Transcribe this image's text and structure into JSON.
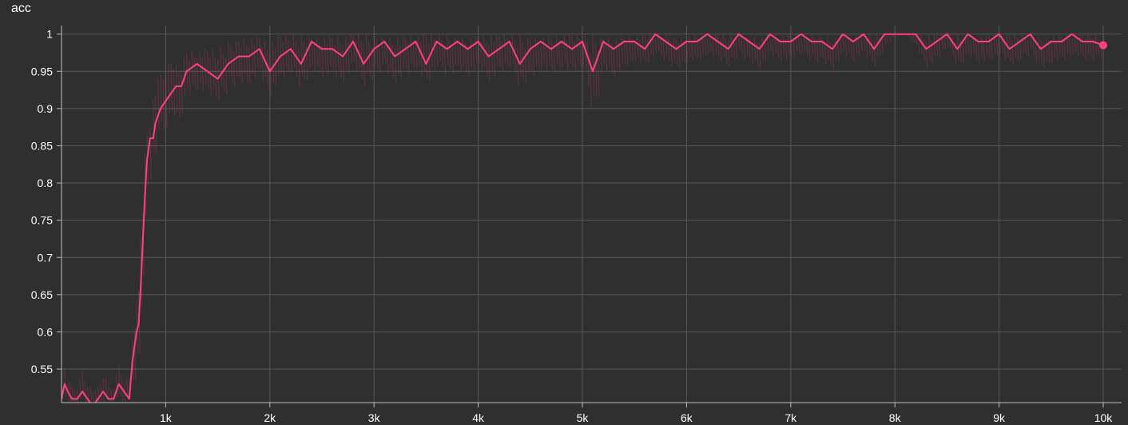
{
  "chart_data": {
    "type": "line",
    "title": "acc",
    "xlabel": "",
    "ylabel": "",
    "xlim": [
      0,
      10000
    ],
    "ylim": [
      0.505,
      1.005
    ],
    "grid": true,
    "x_ticks": [
      {
        "value": 1000,
        "label": "1k"
      },
      {
        "value": 2000,
        "label": "2k"
      },
      {
        "value": 3000,
        "label": "3k"
      },
      {
        "value": 4000,
        "label": "4k"
      },
      {
        "value": 5000,
        "label": "5k"
      },
      {
        "value": 6000,
        "label": "6k"
      },
      {
        "value": 7000,
        "label": "7k"
      },
      {
        "value": 8000,
        "label": "8k"
      },
      {
        "value": 9000,
        "label": "9k"
      },
      {
        "value": 10000,
        "label": "10k"
      }
    ],
    "y_ticks": [
      {
        "value": 0.55,
        "label": "0.55"
      },
      {
        "value": 0.6,
        "label": "0.6"
      },
      {
        "value": 0.65,
        "label": "0.65"
      },
      {
        "value": 0.7,
        "label": "0.7"
      },
      {
        "value": 0.75,
        "label": "0.75"
      },
      {
        "value": 0.8,
        "label": "0.8"
      },
      {
        "value": 0.85,
        "label": "0.85"
      },
      {
        "value": 0.9,
        "label": "0.9"
      },
      {
        "value": 0.95,
        "label": "0.95"
      },
      {
        "value": 1,
        "label": "1"
      }
    ],
    "series": [
      {
        "color": "#ff4081",
        "x": [
          0,
          30,
          60,
          100,
          150,
          200,
          250,
          300,
          350,
          400,
          450,
          500,
          550,
          600,
          650,
          680,
          700,
          720,
          740,
          760,
          780,
          800,
          820,
          850,
          880,
          900,
          950,
          1000,
          1050,
          1100,
          1150,
          1200,
          1300,
          1400,
          1500,
          1600,
          1700,
          1800,
          1900,
          2000,
          2100,
          2200,
          2300,
          2400,
          2500,
          2600,
          2700,
          2800,
          2900,
          3000,
          3100,
          3200,
          3300,
          3400,
          3500,
          3600,
          3700,
          3800,
          3900,
          4000,
          4100,
          4200,
          4300,
          4400,
          4500,
          4600,
          4700,
          4800,
          4900,
          5000,
          5100,
          5200,
          5300,
          5400,
          5500,
          5600,
          5700,
          5800,
          5900,
          6000,
          6100,
          6200,
          6300,
          6400,
          6500,
          6600,
          6700,
          6800,
          6900,
          7000,
          7100,
          7200,
          7300,
          7400,
          7500,
          7600,
          7700,
          7800,
          7900,
          8000,
          8100,
          8200,
          8300,
          8400,
          8500,
          8600,
          8700,
          8800,
          8900,
          9000,
          9100,
          9200,
          9300,
          9400,
          9500,
          9600,
          9700,
          9800,
          9900,
          10000
        ],
        "y": [
          0.51,
          0.53,
          0.52,
          0.51,
          0.51,
          0.52,
          0.51,
          0.5,
          0.51,
          0.52,
          0.51,
          0.51,
          0.53,
          0.52,
          0.51,
          0.56,
          0.58,
          0.6,
          0.61,
          0.66,
          0.72,
          0.78,
          0.83,
          0.86,
          0.86,
          0.88,
          0.9,
          0.91,
          0.92,
          0.93,
          0.93,
          0.95,
          0.96,
          0.95,
          0.94,
          0.96,
          0.97,
          0.97,
          0.98,
          0.95,
          0.97,
          0.98,
          0.96,
          0.99,
          0.98,
          0.98,
          0.97,
          0.99,
          0.96,
          0.98,
          0.99,
          0.97,
          0.98,
          0.99,
          0.96,
          0.99,
          0.98,
          0.99,
          0.98,
          0.99,
          0.97,
          0.98,
          0.99,
          0.96,
          0.98,
          0.99,
          0.98,
          0.99,
          0.98,
          0.99,
          0.95,
          0.99,
          0.98,
          0.99,
          0.99,
          0.98,
          1,
          0.99,
          0.98,
          0.99,
          0.99,
          1,
          0.99,
          0.98,
          1,
          0.99,
          0.98,
          1,
          0.99,
          0.99,
          1,
          0.99,
          0.99,
          0.98,
          1,
          0.99,
          1,
          0.98,
          1,
          1,
          1,
          1,
          0.98,
          0.99,
          1,
          0.98,
          1,
          0.99,
          0.99,
          1,
          0.98,
          0.99,
          1,
          0.98,
          0.99,
          0.99,
          1,
          0.99,
          0.99,
          0.985
        ],
        "raw_high": [
          0.53,
          0.56,
          0.54,
          0.53,
          0.53,
          0.55,
          0.53,
          0.52,
          0.53,
          0.55,
          0.53,
          0.53,
          0.56,
          0.54,
          0.54,
          0.6,
          0.63,
          0.65,
          0.68,
          0.73,
          0.78,
          0.84,
          0.88,
          0.9,
          0.92,
          0.94,
          0.95,
          0.96,
          0.96,
          0.97,
          0.97,
          0.98,
          0.98,
          0.98,
          0.98,
          0.99,
          1,
          1,
          1,
          0.99,
          1,
          1,
          1,
          1,
          1,
          1,
          1,
          1,
          1,
          1,
          1,
          1,
          1,
          1,
          1,
          1,
          1,
          1,
          1,
          1,
          1,
          1,
          1,
          1,
          1,
          1,
          1,
          1,
          1,
          1,
          1,
          1,
          1,
          1,
          1,
          1,
          1,
          1,
          1,
          1,
          1,
          1,
          1,
          1,
          1,
          1,
          1,
          1,
          1,
          1,
          1,
          1,
          1,
          1,
          1,
          1,
          1,
          1,
          1,
          1,
          1,
          1,
          1,
          1,
          1,
          1,
          1,
          1,
          1,
          1,
          1,
          1,
          1,
          1,
          1,
          1,
          1,
          1,
          1,
          1
        ],
        "raw_low": [
          0.5,
          0.5,
          0.5,
          0.5,
          0.5,
          0.5,
          0.5,
          0.5,
          0.5,
          0.5,
          0.5,
          0.5,
          0.5,
          0.5,
          0.5,
          0.52,
          0.53,
          0.55,
          0.56,
          0.6,
          0.66,
          0.72,
          0.78,
          0.8,
          0.82,
          0.83,
          0.86,
          0.86,
          0.87,
          0.88,
          0.89,
          0.91,
          0.92,
          0.91,
          0.9,
          0.92,
          0.93,
          0.93,
          0.94,
          0.91,
          0.93,
          0.94,
          0.92,
          0.95,
          0.94,
          0.94,
          0.93,
          0.95,
          0.92,
          0.94,
          0.95,
          0.93,
          0.94,
          0.95,
          0.92,
          0.95,
          0.94,
          0.95,
          0.94,
          0.95,
          0.93,
          0.94,
          0.95,
          0.92,
          0.94,
          0.95,
          0.94,
          0.95,
          0.94,
          0.95,
          0.88,
          0.95,
          0.94,
          0.95,
          0.96,
          0.95,
          0.97,
          0.96,
          0.95,
          0.96,
          0.96,
          0.97,
          0.96,
          0.95,
          0.97,
          0.96,
          0.95,
          0.97,
          0.96,
          0.96,
          0.97,
          0.96,
          0.96,
          0.95,
          0.97,
          0.96,
          0.97,
          0.95,
          0.98,
          1,
          1,
          0.98,
          0.95,
          0.96,
          0.98,
          0.95,
          0.97,
          0.96,
          0.96,
          0.97,
          0.95,
          0.96,
          0.97,
          0.95,
          0.96,
          0.96,
          0.97,
          0.96,
          0.96,
          0.97
        ]
      }
    ],
    "last_point": {
      "x": 10000,
      "y": 0.985
    }
  }
}
